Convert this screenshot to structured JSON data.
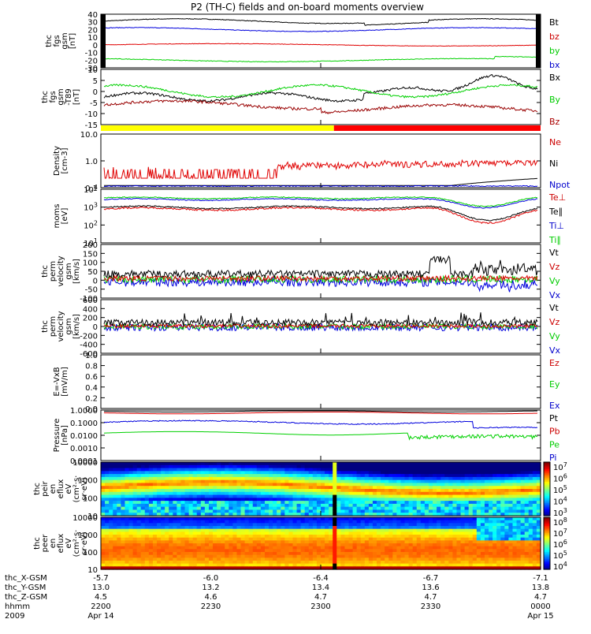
{
  "title": "P2 (TH-C) fields and on-board moments overview",
  "chart_data": [
    {
      "type": "line",
      "ylabel": [
        "thc",
        "fgs",
        "gsm",
        "[nT]"
      ],
      "yticks": [
        "40",
        "30",
        "20",
        "10",
        "0",
        "-10",
        "-20",
        "-30"
      ],
      "ylim": [
        -30,
        40
      ],
      "series": [
        {
          "name": "Bt",
          "color": "#000000",
          "level": 32
        },
        {
          "name": "bz",
          "color": "#cc0000",
          "level": 0
        },
        {
          "name": "by",
          "color": "#00cc00",
          "level": -20
        },
        {
          "name": "bx",
          "color": "#0000cc",
          "level": 18
        }
      ]
    },
    {
      "type": "line",
      "ylabel": [
        "thc",
        "fgs",
        "gsm",
        "-T89",
        "[nT]"
      ],
      "yticks": [
        "10",
        "5",
        "0",
        "-5",
        "-10",
        "-15"
      ],
      "ylim": [
        -18,
        10
      ],
      "series": [
        {
          "name": "Bx",
          "color": "#000000",
          "level": -5
        },
        {
          "name": "By",
          "color": "#00cc00",
          "level": -2
        },
        {
          "name": "Bz",
          "color": "#aa0000",
          "level": -8
        }
      ]
    },
    {
      "type": "line",
      "ylabel": [
        "Density",
        "[cm-3]"
      ],
      "yticks": [
        "10.0",
        "1.0",
        "0.1"
      ],
      "ylim": [
        0.1,
        10
      ],
      "scale": "log",
      "series": [
        {
          "name": "Ne",
          "color": "#cc0000"
        },
        {
          "name": "Ni",
          "color": "#000000"
        },
        {
          "name": "Npot",
          "color": "#0000cc"
        }
      ]
    },
    {
      "type": "line",
      "ylabel": [
        "moms",
        "[eV]"
      ],
      "yticks": [
        "10^4",
        "10^3",
        "10^2",
        "10^1"
      ],
      "scale": "log",
      "series": [
        {
          "name": "Te⊥",
          "color": "#cc0000"
        },
        {
          "name": "Te∥",
          "color": "#000000"
        },
        {
          "name": "Ti⊥",
          "color": "#0000cc"
        },
        {
          "name": "Ti∥",
          "color": "#00cc00"
        }
      ]
    },
    {
      "type": "line",
      "ylabel": [
        "thc",
        "perm",
        "velocity",
        "gsm",
        "[km/s]"
      ],
      "yticks": [
        "200",
        "150",
        "100",
        "50",
        "0",
        "-50",
        "-100"
      ],
      "ylim": [
        -100,
        200
      ],
      "series": [
        {
          "name": "Vt",
          "color": "#000000"
        },
        {
          "name": "Vz",
          "color": "#cc0000"
        },
        {
          "name": "Vy",
          "color": "#00cc00"
        },
        {
          "name": "Vx",
          "color": "#0000cc"
        }
      ]
    },
    {
      "type": "line",
      "ylabel": [
        "thc",
        "perm",
        "velocity",
        "gsm",
        "[km/s]"
      ],
      "yticks": [
        "600",
        "400",
        "200",
        "0",
        "-200",
        "-400",
        "-600"
      ],
      "ylim": [
        -600,
        600
      ],
      "series": [
        {
          "name": "Vt",
          "color": "#000000"
        },
        {
          "name": "Vz",
          "color": "#cc0000"
        },
        {
          "name": "Vy",
          "color": "#00cc00"
        },
        {
          "name": "Vx",
          "color": "#0000cc"
        }
      ]
    },
    {
      "type": "line",
      "ylabel": [
        "E=-VxB",
        "[mV/m]"
      ],
      "yticks": [
        "1.0",
        "0.8",
        "0.6",
        "0.4",
        "0.2",
        "0.0"
      ],
      "ylim": [
        0,
        1
      ],
      "series": [
        {
          "name": "Ez",
          "color": "#cc0000"
        },
        {
          "name": "Ey",
          "color": "#00cc00"
        },
        {
          "name": "Ex",
          "color": "#0000cc"
        }
      ]
    },
    {
      "type": "line",
      "ylabel": [
        "Pressure",
        "[nPa]"
      ],
      "yticks": [
        "1.0000",
        "0.1000",
        "0.0100",
        "0.0010",
        "0.0001"
      ],
      "scale": "log",
      "series": [
        {
          "name": "Pt",
          "color": "#000000"
        },
        {
          "name": "Pb",
          "color": "#cc0000"
        },
        {
          "name": "Pe",
          "color": "#00cc00"
        },
        {
          "name": "Pi",
          "color": "#0000cc"
        }
      ]
    },
    {
      "type": "heatmap",
      "ylabel": [
        "thc",
        "peir",
        "en",
        "eflux",
        "eV",
        "(cm²·s·",
        "sr·eV)"
      ],
      "yticks": [
        "10000",
        "1000",
        "100",
        "10"
      ],
      "colorbar": [
        "10^7",
        "10^6",
        "10^5",
        "10^4",
        "10^3"
      ]
    },
    {
      "type": "heatmap",
      "ylabel": [
        "thc",
        "peer",
        "en",
        "eflux",
        "eV",
        "(cm²·s·",
        "sr·eV)"
      ],
      "yticks": [
        "10000",
        "1000",
        "100",
        "10"
      ],
      "colorbar": [
        "10^8",
        "10^7",
        "10^6",
        "10^5",
        "10^4"
      ]
    }
  ],
  "mode_bar": {
    "colors": [
      "#ffff00",
      "#ff0000"
    ],
    "split_fraction": 0.53
  },
  "xaxis": {
    "rows": [
      {
        "label": "thc_X-GSM",
        "values": [
          "-5.7",
          "-6.0",
          "-6.4",
          "-6.7",
          "-7.1"
        ]
      },
      {
        "label": "thc_Y-GSM",
        "values": [
          "13.0",
          "13.2",
          "13.4",
          "13.6",
          "13.8"
        ]
      },
      {
        "label": "thc_Z-GSM",
        "values": [
          "4.5",
          "4.6",
          "4.7",
          "4.7",
          "4.7"
        ]
      },
      {
        "label": "hhmm",
        "values": [
          "2200",
          "2230",
          "2300",
          "2330",
          "0000"
        ]
      },
      {
        "label": "2009",
        "values": [
          "Apr 14",
          "",
          "",
          "",
          "Apr 15"
        ]
      }
    ]
  }
}
